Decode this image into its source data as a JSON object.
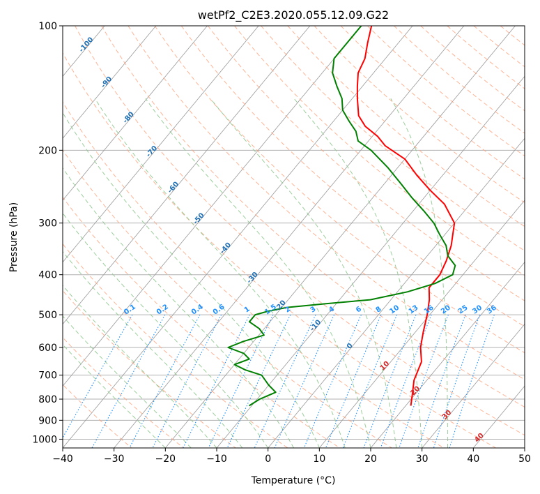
{
  "chart_data": {
    "type": "line",
    "title": "wetPf2_C2E3.2020.055.12.09.G22",
    "xlabel": "Temperature (°C)",
    "ylabel": "Pressure (hPa)",
    "xlim": [
      -40,
      50
    ],
    "ylim": [
      1050,
      100
    ],
    "y_scale": "log",
    "grid": true,
    "x_ticks": [
      -40,
      -30,
      -20,
      -10,
      0,
      10,
      20,
      30,
      40,
      50
    ],
    "y_ticks": [
      100,
      200,
      300,
      400,
      500,
      600,
      700,
      800,
      900,
      1000
    ],
    "colors": {
      "temperature": "#ff0000",
      "dewpoint": "#008000",
      "dry_adiabat": "#ffa07a",
      "moist_adiabat": "#90c890",
      "mixing_ratio": "#1e90ff",
      "isotherm": "#999999"
    },
    "series": [
      {
        "color": "#ff0000",
        "p": [
          830,
          780,
          720,
          650,
          600,
          550,
          500,
          460,
          430,
          400,
          370,
          340,
          300,
          270,
          250,
          230,
          210,
          195,
          185,
          175,
          165,
          150,
          140,
          130,
          120,
          110,
          100
        ],
        "t": [
          21,
          19.5,
          17.5,
          16,
          13.5,
          11.5,
          9.5,
          7.5,
          5.5,
          5.5,
          4.5,
          3,
          0,
          -5,
          -10,
          -15,
          -20,
          -26,
          -29,
          -33,
          -36,
          -39,
          -41,
          -43,
          -44,
          -46,
          -48
        ]
      },
      {
        "color": "#008000",
        "p": [
          830,
          800,
          770,
          740,
          700,
          680,
          660,
          640,
          620,
          600,
          580,
          560,
          540,
          520,
          500,
          490,
          480,
          470,
          460,
          440,
          420,
          400,
          380,
          360,
          340,
          320,
          300,
          280,
          260,
          240,
          220,
          200,
          190,
          180,
          170,
          160,
          150,
          140,
          130,
          120,
          110,
          100
        ],
        "t": [
          -10.5,
          -9.5,
          -7.5,
          -10,
          -13,
          -17,
          -20,
          -18,
          -20,
          -24,
          -22,
          -19,
          -21,
          -24,
          -24,
          -22,
          -19,
          -12,
          -4,
          2,
          6,
          8,
          7,
          4,
          2,
          -1,
          -4,
          -8,
          -12.5,
          -17,
          -22,
          -28,
          -32,
          -34,
          -37,
          -40,
          -42,
          -45,
          -48,
          -50,
          -50,
          -50
        ]
      }
    ],
    "mixing_ratio_labels": [
      "0.1",
      "0.2",
      "0.4",
      "0.6",
      "1",
      "1.5",
      "2",
      "3",
      "4",
      "6",
      "8",
      "10",
      "13",
      "16",
      "20",
      "25",
      "30",
      "36"
    ],
    "mixing_ratio_values": [
      0.1,
      0.2,
      0.4,
      0.6,
      1,
      1.5,
      2,
      3,
      4,
      6,
      8,
      10,
      13,
      16,
      20,
      25,
      30,
      36
    ],
    "isotherm_labels": [
      {
        "text": "-100",
        "t": -100,
        "p": 112
      },
      {
        "text": "-90",
        "t": -90,
        "p": 138
      },
      {
        "text": "-80",
        "t": -80,
        "p": 168
      },
      {
        "text": "-70",
        "t": -70,
        "p": 203
      },
      {
        "text": "-60",
        "t": -60,
        "p": 248
      },
      {
        "text": "-50",
        "t": -50,
        "p": 295
      },
      {
        "text": "-40",
        "t": -40,
        "p": 348
      },
      {
        "text": "-30",
        "t": -30,
        "p": 410
      },
      {
        "text": "-20",
        "t": -20,
        "p": 480
      },
      {
        "text": "-10",
        "t": -10,
        "p": 535
      },
      {
        "text": "0",
        "t": 0,
        "p": 600
      }
    ],
    "equivalent_labels": [
      {
        "text": "10",
        "t": 10,
        "p": 670
      },
      {
        "text": "20",
        "t": 20,
        "p": 770
      },
      {
        "text": "30",
        "t": 30,
        "p": 880
      },
      {
        "text": "40",
        "t": 40,
        "p": 1000
      }
    ]
  }
}
